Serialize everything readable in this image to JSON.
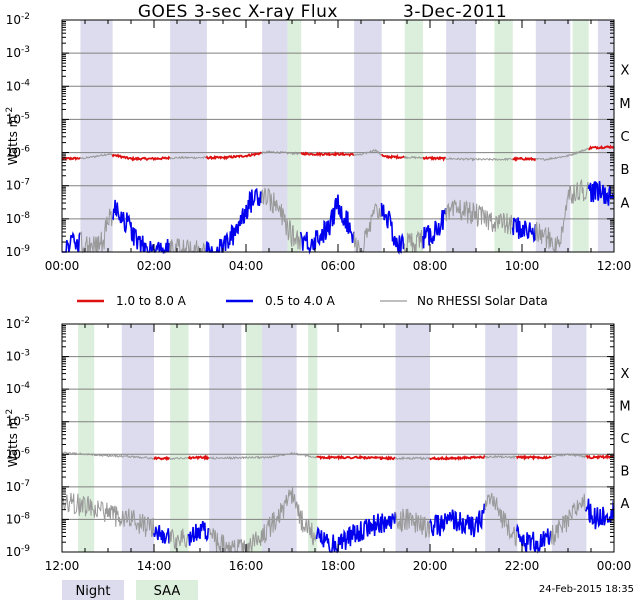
{
  "title": "GOES 3-sec X-ray Flux",
  "date": "3-Dec-2011",
  "ylabel": "Watts m",
  "ylabel_sup": "-2",
  "y_ticks": [
    "10-9",
    "10-8",
    "10-7",
    "10-6",
    "10-5",
    "10-4",
    "10-3",
    "10-2"
  ],
  "flare_classes": [
    "A",
    "B",
    "C",
    "M",
    "X"
  ],
  "legend": {
    "high": "1.0 to 8.0 A",
    "low": "0.5 to 4.0 A",
    "norhessi": "No RHESSI Solar Data",
    "night": "Night",
    "saa": "SAA"
  },
  "timestamp": "24-Feb-2015 18:35",
  "colors": {
    "high": "#dd1111",
    "low": "#0000ee",
    "norhessi": "#999999",
    "night": "#dcdcee",
    "saa": "#dcefdc",
    "grid": "#808080"
  },
  "chart_data": [
    {
      "type": "line",
      "title": "GOES 3-sec X-ray Flux 3-Dec-2011",
      "ylabel": "Watts m-2",
      "yscale": "log",
      "ylim": [
        1e-09,
        0.01
      ],
      "xlim_hours": [
        0,
        12
      ],
      "x_tick_labels": [
        "00:00",
        "02:00",
        "04:00",
        "06:00",
        "08:00",
        "10:00",
        "12:00"
      ],
      "night_hours": [
        [
          0.4,
          1.1
        ],
        [
          2.35,
          3.15
        ],
        [
          4.35,
          5.0
        ],
        [
          6.35,
          6.95
        ],
        [
          8.35,
          9.0
        ],
        [
          10.3,
          11.05
        ],
        [
          11.65,
          12.0
        ]
      ],
      "saa_hours": [
        [
          4.9,
          5.2
        ],
        [
          7.45,
          7.85
        ],
        [
          9.4,
          9.8
        ],
        [
          11.1,
          11.45
        ]
      ],
      "series": [
        {
          "name": "1.0 to 8.0 A",
          "x": [
            0.0,
            0.5,
            0.8,
            1.0,
            1.2,
            1.5,
            2.0,
            2.5,
            3.0,
            3.5,
            4.0,
            4.5,
            5.0,
            5.5,
            6.0,
            6.5,
            6.8,
            7.0,
            7.5,
            8.0,
            8.5,
            9.0,
            9.5,
            10.0,
            10.5,
            11.0,
            11.5,
            12.0
          ],
          "y": [
            6.5e-07,
            6.8e-07,
            8e-07,
            9e-07,
            8e-07,
            6.5e-07,
            6.5e-07,
            7e-07,
            7e-07,
            7e-07,
            8e-07,
            1.05e-06,
            9.5e-07,
            9e-07,
            9e-07,
            8.5e-07,
            1.2e-06,
            7.5e-07,
            7.2e-07,
            6.8e-07,
            6.5e-07,
            6.2e-07,
            6.2e-07,
            6.5e-07,
            6.2e-07,
            8e-07,
            1.4e-06,
            1.5e-06
          ],
          "shown_as_red": [
            [
              0.0,
              0.4
            ],
            [
              1.1,
              2.35
            ],
            [
              3.15,
              4.35
            ],
            [
              5.2,
              6.35
            ],
            [
              6.95,
              7.45
            ],
            [
              7.85,
              8.35
            ],
            [
              9.8,
              10.3
            ],
            [
              11.45,
              12.0
            ]
          ]
        },
        {
          "name": "0.5 to 4.0 A",
          "x": [
            0.0,
            0.3,
            0.6,
            0.9,
            1.0,
            1.2,
            1.4,
            1.7,
            2.0,
            2.5,
            3.0,
            3.4,
            3.7,
            4.0,
            4.2,
            4.4,
            4.7,
            5.0,
            5.4,
            5.8,
            6.0,
            6.2,
            6.5,
            6.8,
            7.0,
            7.3,
            7.6,
            8.0,
            8.3,
            8.6,
            8.9,
            9.2,
            9.5,
            10.0,
            10.5,
            10.8,
            11.0,
            11.2,
            11.5,
            12.0
          ],
          "y": [
            1e-09,
            2e-09,
            1.5e-09,
            2e-09,
            1e-08,
            2e-08,
            8e-09,
            1.5e-09,
            1e-09,
            1.2e-09,
            1e-09,
            1e-09,
            3e-09,
            2e-08,
            5e-08,
            6e-08,
            2e-08,
            3e-09,
            2e-09,
            5e-09,
            3e-08,
            8e-09,
            1e-09,
            1.5e-08,
            2e-08,
            1.5e-09,
            2e-09,
            3e-09,
            1e-08,
            2e-08,
            1.5e-08,
            1e-08,
            8e-09,
            5e-09,
            3e-09,
            1.5e-09,
            5e-08,
            8e-08,
            7e-08,
            5e-08
          ],
          "shown_as_blue": [
            [
              0.0,
              0.4
            ],
            [
              1.1,
              2.35
            ],
            [
              3.15,
              4.35
            ],
            [
              5.2,
              6.35
            ],
            [
              6.95,
              7.45
            ],
            [
              7.85,
              8.35
            ],
            [
              9.8,
              10.3
            ],
            [
              11.45,
              12.0
            ]
          ]
        }
      ]
    },
    {
      "type": "line",
      "title": "",
      "ylabel": "Watts m-2",
      "yscale": "log",
      "ylim": [
        1e-09,
        0.01
      ],
      "xlim_hours": [
        12,
        24
      ],
      "x_tick_labels": [
        "12:00",
        "14:00",
        "16:00",
        "18:00",
        "20:00",
        "22:00",
        "00:00"
      ],
      "night_hours": [
        [
          13.3,
          14.0
        ],
        [
          15.2,
          15.9
        ],
        [
          16.3,
          17.1
        ],
        [
          19.25,
          20.0
        ],
        [
          21.2,
          21.9
        ],
        [
          22.65,
          23.4
        ]
      ],
      "saa_hours": [
        [
          12.35,
          12.7
        ],
        [
          14.35,
          14.75
        ],
        [
          16.0,
          16.35
        ],
        [
          17.35,
          17.55
        ]
      ],
      "series": [
        {
          "name": "1.0 to 8.0 A",
          "x": [
            12.0,
            12.5,
            13.0,
            13.5,
            14.0,
            14.5,
            15.0,
            15.5,
            16.0,
            16.5,
            17.0,
            17.3,
            17.5,
            18.0,
            18.5,
            19.0,
            19.5,
            20.0,
            20.5,
            21.0,
            21.5,
            22.0,
            22.5,
            23.0,
            23.5,
            24.0
          ],
          "y": [
            1.1e-06,
            1e-06,
            9e-07,
            8.5e-07,
            7.5e-07,
            7.5e-07,
            8e-07,
            7.5e-07,
            8e-07,
            8e-07,
            1.1e-06,
            9e-07,
            8e-07,
            8e-07,
            8e-07,
            7.5e-07,
            7.5e-07,
            7.5e-07,
            7.5e-07,
            8e-07,
            8.5e-07,
            8e-07,
            8e-07,
            1e-06,
            8e-07,
            8.5e-07
          ],
          "shown_as_red": [
            [
              14.0,
              14.35
            ],
            [
              14.75,
              15.2
            ],
            [
              17.55,
              19.25
            ],
            [
              20.0,
              21.2
            ],
            [
              21.9,
              22.65
            ],
            [
              23.4,
              24.0
            ]
          ]
        },
        {
          "name": "0.5 to 4.0 A",
          "x": [
            12.0,
            12.3,
            12.6,
            13.0,
            13.5,
            14.0,
            14.5,
            15.0,
            15.5,
            16.0,
            16.5,
            17.0,
            17.2,
            17.5,
            18.0,
            18.5,
            19.0,
            19.5,
            20.0,
            20.5,
            21.0,
            21.3,
            21.6,
            22.0,
            22.5,
            23.0,
            23.3,
            23.6,
            24.0
          ],
          "y": [
            4e-08,
            3e-08,
            2.5e-08,
            1.5e-08,
            1e-08,
            5e-09,
            2e-09,
            5e-09,
            1.5e-09,
            1e-09,
            5e-09,
            6e-08,
            1e-08,
            3e-09,
            1.5e-09,
            5e-09,
            8e-09,
            1e-08,
            5e-09,
            1e-08,
            5e-09,
            5e-08,
            1e-08,
            2e-09,
            2e-09,
            8e-09,
            4e-08,
            1e-08,
            2e-08
          ],
          "shown_as_blue": [
            [
              14.0,
              14.35
            ],
            [
              14.75,
              15.2
            ],
            [
              17.55,
              19.25
            ],
            [
              20.0,
              21.2
            ],
            [
              21.9,
              22.65
            ],
            [
              23.4,
              24.0
            ]
          ]
        }
      ]
    }
  ]
}
